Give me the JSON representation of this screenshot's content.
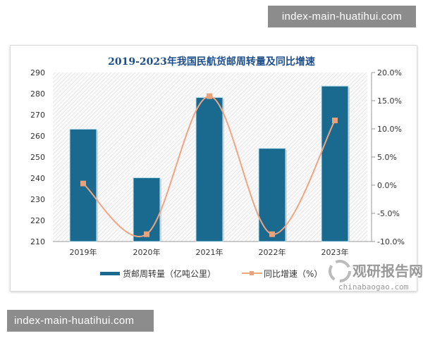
{
  "watermarks": {
    "top": "index-main-huatihui.com",
    "bottom": "index-main-huatihui.com"
  },
  "source_logo": {
    "name": "观研报告网",
    "url_text": "chinabaogao.com"
  },
  "colors": {
    "bar": "#1a6a8f",
    "line": "#f0a482",
    "marker": "#e8a27c",
    "title": "#1d4e89"
  },
  "chart_data": {
    "type": "bar+line",
    "title": "2019-2023年我国民航货邮周转量及同比增速",
    "categories": [
      "2019年",
      "2020年",
      "2021年",
      "2022年",
      "2023年"
    ],
    "series": [
      {
        "name": "货邮周转量（亿吨公里）",
        "type": "bar",
        "axis": "left",
        "values": [
          263.2,
          240.2,
          278.2,
          254.1,
          283.6
        ]
      },
      {
        "name": "同比增速（%）",
        "type": "line",
        "axis": "right",
        "values": [
          0.3,
          -8.7,
          15.8,
          -8.7,
          11.5
        ]
      }
    ],
    "left_axis": {
      "ylim": [
        210,
        290
      ],
      "ticks": [
        "210",
        "220",
        "230",
        "240",
        "250",
        "260",
        "270",
        "280",
        "290"
      ]
    },
    "right_axis": {
      "ylim": [
        -10,
        20
      ],
      "ticks": [
        "-10.0%",
        "-5.0%",
        "0.0%",
        "5.0%",
        "10.0%",
        "15.0%",
        "20.0%"
      ]
    },
    "legend_position": "bottom"
  }
}
